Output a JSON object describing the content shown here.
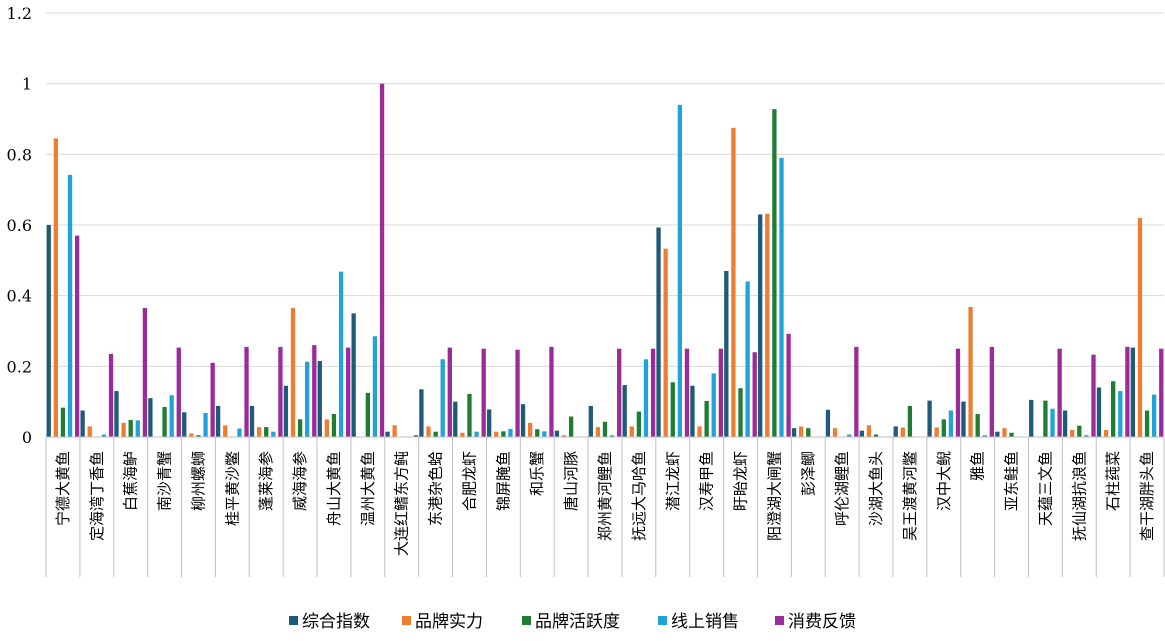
{
  "chart_data": {
    "type": "bar",
    "title": "",
    "xlabel": "",
    "ylabel": "",
    "ylim": [
      0,
      1.2
    ],
    "yticks": [
      "0",
      "0.2",
      "0.4",
      "0.6",
      "0.8",
      "1",
      "1.2"
    ],
    "grid": true,
    "legend_position": "bottom",
    "categories": [
      "宁德大黄鱼",
      "定海湾丁香鱼",
      "白蕉海鲈",
      "南沙青蟹",
      "柳州螺蛳",
      "桂平黄沙鳖",
      "蓬莱海参",
      "威海海参",
      "舟山大黄鱼",
      "温州大黄鱼",
      "大连红鳍东方鲀",
      "东港杂色蛤",
      "合肥龙虾",
      "锦屏腌鱼",
      "和乐蟹",
      "唐山河豚",
      "郑州黄河鲤鱼",
      "抚远大马哈鱼",
      "潜江龙虾",
      "汉寿甲鱼",
      "盱眙龙虾",
      "阳澄湖大闸蟹",
      "彭泽鲫",
      "呼伦湖鲤鱼",
      "沙湖大鱼头",
      "吴王渡黄河鳖",
      "汉中大鲵",
      "雅鱼",
      "亚东鲑鱼",
      "天蕴三文鱼",
      "抚仙湖抗浪鱼",
      "石柱莼菜",
      "查干湖胖头鱼"
    ],
    "series": [
      {
        "name": "综合指数",
        "color": "#1f5a7a",
        "values": [
          0.6,
          0.075,
          0.13,
          0.11,
          0.07,
          0.088,
          0.088,
          0.145,
          0.215,
          0.35,
          0.015,
          0.135,
          0.1,
          0.078,
          0.093,
          0.018,
          0.088,
          0.147,
          0.593,
          0.145,
          0.47,
          0.63,
          0.025,
          0.077,
          0.018,
          0.03,
          0.103,
          0.1,
          0.015,
          0.105,
          0.075,
          0.14,
          0.253
        ]
      },
      {
        "name": "品牌实力",
        "color": "#ed7d31",
        "values": [
          0.845,
          0.03,
          0.04,
          0.0,
          0.01,
          0.033,
          0.028,
          0.365,
          0.05,
          0.0,
          0.033,
          0.03,
          0.012,
          0.015,
          0.04,
          0.005,
          0.028,
          0.03,
          0.533,
          0.03,
          0.875,
          0.632,
          0.03,
          0.025,
          0.033,
          0.027,
          0.027,
          0.368,
          0.025,
          0.0,
          0.02,
          0.02,
          0.62
        ]
      },
      {
        "name": "品牌活跃度",
        "color": "#1e7d32",
        "values": [
          0.083,
          0.0,
          0.048,
          0.085,
          0.005,
          0.0,
          0.028,
          0.05,
          0.065,
          0.125,
          0.0,
          0.015,
          0.122,
          0.016,
          0.022,
          0.058,
          0.043,
          0.072,
          0.155,
          0.102,
          0.138,
          0.928,
          0.025,
          0.0,
          0.007,
          0.088,
          0.05,
          0.065,
          0.012,
          0.103,
          0.032,
          0.158,
          0.075
        ]
      },
      {
        "name": "线上销售",
        "color": "#1fa3d8",
        "values": [
          0.742,
          0.007,
          0.047,
          0.118,
          0.068,
          0.024,
          0.015,
          0.213,
          0.468,
          0.285,
          0.0,
          0.22,
          0.015,
          0.023,
          0.016,
          0.0,
          0.005,
          0.22,
          0.94,
          0.18,
          0.44,
          0.79,
          0.0,
          0.007,
          0.0,
          0.0,
          0.075,
          0.005,
          0.0,
          0.08,
          0.005,
          0.13,
          0.12
        ]
      },
      {
        "name": "消费反馈",
        "color": "#9b2b9b",
        "values": [
          0.57,
          0.235,
          0.365,
          0.253,
          0.21,
          0.255,
          0.255,
          0.26,
          0.253,
          1.0,
          0.005,
          0.253,
          0.25,
          0.247,
          0.255,
          0.0,
          0.25,
          0.25,
          0.25,
          0.25,
          0.24,
          0.292,
          0.0,
          0.255,
          0.0,
          0.0,
          0.25,
          0.255,
          0.0,
          0.25,
          0.233,
          0.255,
          0.25
        ]
      }
    ]
  }
}
